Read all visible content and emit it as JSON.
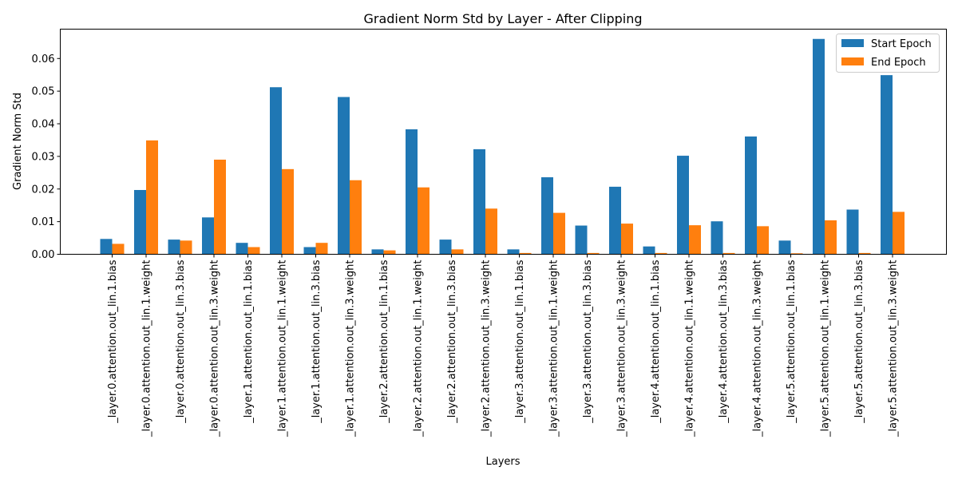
{
  "chart_data": {
    "type": "bar",
    "title": "Gradient Norm Std by Layer - After Clipping",
    "xlabel": "Layers",
    "ylabel": "Gradient Norm Std",
    "ylim": [
      0,
      0.069
    ],
    "yticks": [
      "0.00",
      "0.01",
      "0.02",
      "0.03",
      "0.04",
      "0.05",
      "0.06"
    ],
    "grid": false,
    "legend_position": "top-right",
    "categories": [
      "_layer.0.attention.out_lin.1.bias",
      "_layer.0.attention.out_lin.1.weight",
      "_layer.0.attention.out_lin.3.bias",
      "_layer.0.attention.out_lin.3.weight",
      "_layer.1.attention.out_lin.1.bias",
      "_layer.1.attention.out_lin.1.weight",
      "_layer.1.attention.out_lin.3.bias",
      "_layer.1.attention.out_lin.3.weight",
      "_layer.2.attention.out_lin.1.bias",
      "_layer.2.attention.out_lin.1.weight",
      "_layer.2.attention.out_lin.3.bias",
      "_layer.2.attention.out_lin.3.weight",
      "_layer.3.attention.out_lin.1.bias",
      "_layer.3.attention.out_lin.1.weight",
      "_layer.3.attention.out_lin.3.bias",
      "_layer.3.attention.out_lin.3.weight",
      "_layer.4.attention.out_lin.1.bias",
      "_layer.4.attention.out_lin.1.weight",
      "_layer.4.attention.out_lin.3.bias",
      "_layer.4.attention.out_lin.3.weight",
      "_layer.5.attention.out_lin.1.bias",
      "_layer.5.attention.out_lin.1.weight",
      "_layer.5.attention.out_lin.3.bias",
      "_layer.5.attention.out_lin.3.weight"
    ],
    "series": [
      {
        "name": "Start Epoch",
        "color": "#1f77b4",
        "values": [
          0.0047,
          0.0197,
          0.0045,
          0.0113,
          0.0035,
          0.0512,
          0.0022,
          0.0482,
          0.0015,
          0.0383,
          0.0045,
          0.0322,
          0.0015,
          0.0236,
          0.0088,
          0.0207,
          0.0024,
          0.0302,
          0.0101,
          0.0361,
          0.0042,
          0.066,
          0.0137,
          0.0549
        ]
      },
      {
        "name": "End Epoch",
        "color": "#ff7f0e",
        "values": [
          0.0032,
          0.0349,
          0.0042,
          0.029,
          0.0022,
          0.0261,
          0.0035,
          0.0227,
          0.0012,
          0.0205,
          0.0015,
          0.014,
          0.0004,
          0.0127,
          0.0004,
          0.0094,
          0.0004,
          0.0089,
          0.0004,
          0.0086,
          0.0003,
          0.0104,
          0.0004,
          0.013
        ]
      }
    ]
  }
}
